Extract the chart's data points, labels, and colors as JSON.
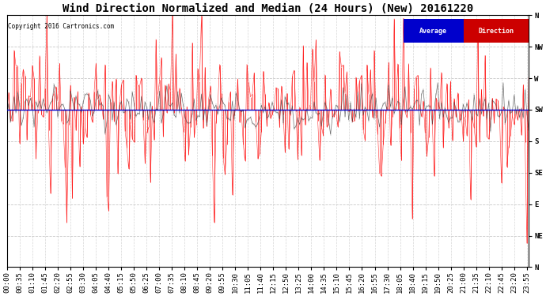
{
  "title": "Wind Direction Normalized and Median (24 Hours) (New) 20161220",
  "copyright": "Copyright 2016 Cartronics.com",
  "background_color": "#ffffff",
  "plot_bg_color": "#ffffff",
  "grid_color": "#bbbbbb",
  "ytick_labels": [
    "N",
    "NW",
    "W",
    "SW",
    "S",
    "SE",
    "E",
    "NE",
    "N"
  ],
  "ytick_values": [
    360,
    315,
    270,
    225,
    180,
    135,
    90,
    45,
    0
  ],
  "ylim": [
    0,
    360
  ],
  "avg_direction_value": 225,
  "avg_direction_color": "#0000cc",
  "red_series_color": "#ff0000",
  "dark_series_color": "#333333",
  "legend_avg_bg": "#0000cc",
  "legend_dir_bg": "#cc0000",
  "legend_avg_text": "Average",
  "legend_dir_text": "Direction",
  "title_fontsize": 10,
  "tick_fontsize": 6.5,
  "num_points": 288,
  "figwidth": 6.9,
  "figheight": 3.75
}
